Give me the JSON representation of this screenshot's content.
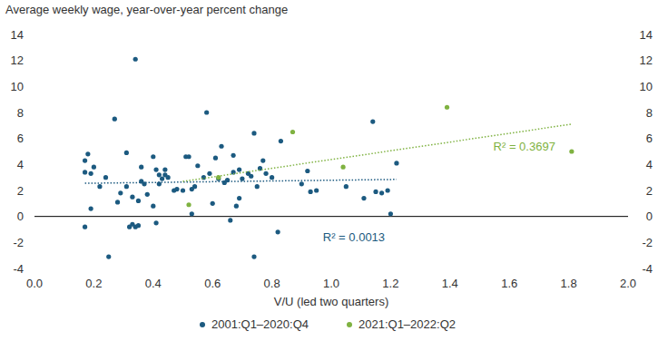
{
  "chart_data": {
    "type": "scatter",
    "ylabel": "Average weekly wage, year-over-year percent change",
    "xlabel": "V/U (led two quarters)",
    "xlim": [
      0,
      2
    ],
    "ylim": [
      -4,
      14
    ],
    "xticks": [
      {
        "value": 0,
        "label": "0.0"
      },
      0.2,
      0.4,
      0.6,
      0.8,
      {
        "value": 1,
        "label": "1.0"
      },
      1.2,
      1.4,
      1.6,
      1.8,
      {
        "value": 2,
        "label": "2.0"
      }
    ],
    "yticks": [
      -4,
      -2,
      0,
      2,
      4,
      6,
      8,
      10,
      12,
      14
    ],
    "legend": "bottom",
    "grid": false,
    "series": [
      {
        "name": "2001:Q1–2020:Q4",
        "color": "#1c5a80",
        "marker": "circle",
        "x": [
          0.17,
          0.17,
          0.17,
          0.18,
          0.19,
          0.19,
          0.2,
          0.22,
          0.24,
          0.25,
          0.27,
          0.28,
          0.29,
          0.31,
          0.31,
          0.32,
          0.33,
          0.33,
          0.34,
          0.34,
          0.35,
          0.35,
          0.36,
          0.36,
          0.37,
          0.38,
          0.4,
          0.4,
          0.41,
          0.41,
          0.42,
          0.42,
          0.43,
          0.44,
          0.44,
          0.45,
          0.47,
          0.48,
          0.5,
          0.51,
          0.52,
          0.53,
          0.53,
          0.54,
          0.55,
          0.57,
          0.58,
          0.59,
          0.6,
          0.61,
          0.62,
          0.63,
          0.64,
          0.65,
          0.66,
          0.67,
          0.67,
          0.68,
          0.69,
          0.69,
          0.7,
          0.72,
          0.73,
          0.74,
          0.74,
          0.75,
          0.76,
          0.77,
          0.78,
          0.8,
          0.82,
          0.83,
          0.9,
          0.92,
          0.93,
          0.95,
          1.05,
          1.11,
          1.14,
          1.15,
          1.17,
          1.19,
          1.2,
          1.22
        ],
        "values": [
          -0.8,
          4.3,
          3.4,
          4.8,
          3.3,
          0.6,
          3.8,
          2.3,
          3.0,
          -3.1,
          7.5,
          1.1,
          1.8,
          2.3,
          4.9,
          -0.8,
          -0.6,
          1.5,
          12.1,
          -0.8,
          1.2,
          -0.7,
          2.7,
          3.8,
          2.5,
          1.7,
          0.8,
          4.6,
          3.6,
          -0.5,
          2.5,
          3.2,
          2.9,
          3.6,
          3.2,
          3.0,
          2.0,
          2.1,
          2.0,
          4.6,
          4.6,
          0.2,
          2.1,
          2.3,
          3.9,
          3.0,
          8.0,
          3.3,
          1.0,
          4.5,
          2.9,
          5.4,
          2.6,
          2.8,
          -0.3,
          4.7,
          3.4,
          0.8,
          1.4,
          3.6,
          2.9,
          3.3,
          3.1,
          6.4,
          -3.1,
          2.3,
          3.7,
          4.3,
          3.3,
          3.0,
          -1.2,
          5.8,
          2.5,
          3.5,
          1.9,
          2.0,
          2.3,
          1.4,
          7.3,
          1.9,
          1.8,
          2.0,
          0.2,
          4.1
        ],
        "trend": {
          "x": [
            0.17,
            1.22
          ],
          "values": [
            2.55,
            2.85
          ],
          "line_style": "dotted"
        },
        "r_squared_label": "R² = 0.0013"
      },
      {
        "name": "2021:Q1–2022:Q2",
        "color": "#7fb241",
        "marker": "circle",
        "x": [
          0.52,
          0.62,
          0.87,
          1.04,
          1.39,
          1.81
        ],
        "values": [
          0.9,
          3.0,
          6.5,
          3.8,
          8.4,
          5.0
        ],
        "trend": {
          "x": [
            0.5,
            1.81
          ],
          "values": [
            2.7,
            7.1
          ],
          "line_style": "dotted"
        },
        "r_squared_label": "R² = 0.3697"
      }
    ]
  }
}
